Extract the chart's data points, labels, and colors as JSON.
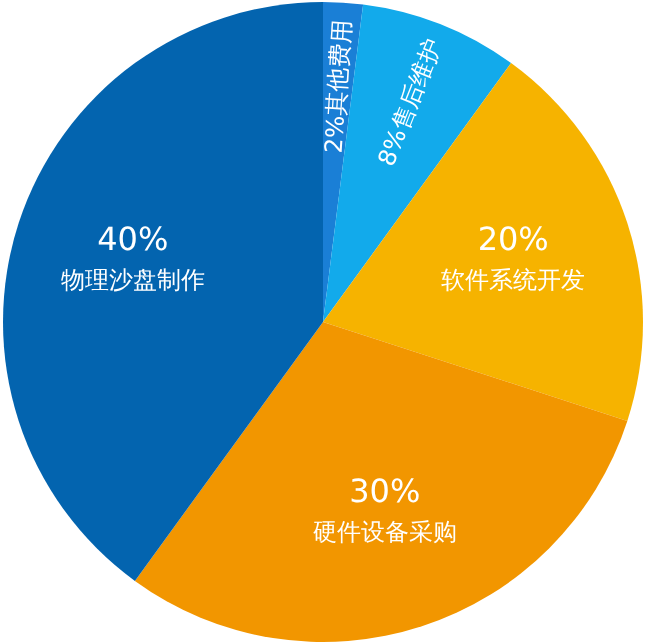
{
  "chart_data": {
    "type": "pie",
    "categories": [
      "其他费用",
      "售后维护",
      "软件系统开发",
      "硬件设备采购",
      "物理沙盘制作"
    ],
    "values": [
      2,
      8,
      20,
      30,
      40
    ],
    "colors": [
      "#1a7fd6",
      "#12aaeb",
      "#f6b300",
      "#f29600",
      "#0364af"
    ],
    "value_labels": [
      "2%",
      "8%",
      "20%",
      "30%",
      "40%"
    ]
  }
}
